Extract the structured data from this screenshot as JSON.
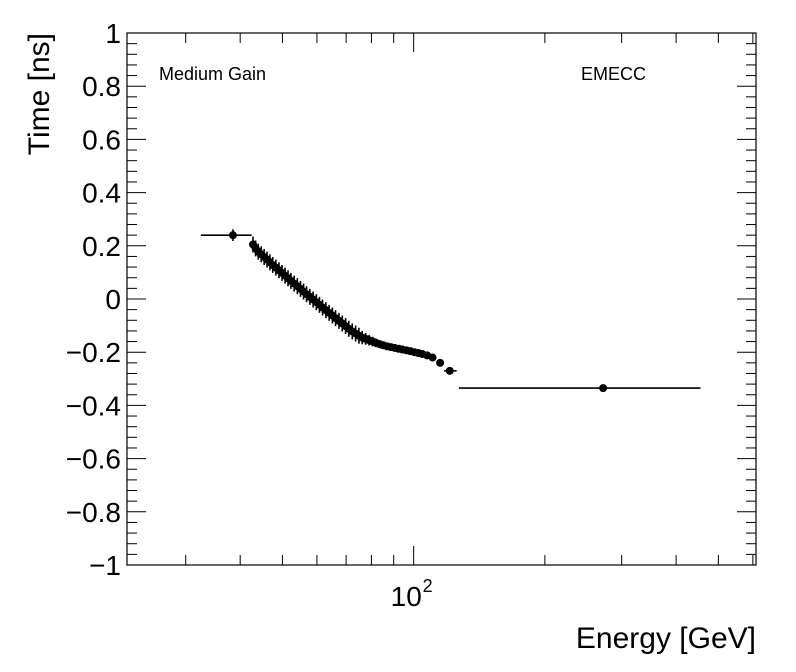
{
  "chart_data": {
    "type": "scatter",
    "title": "",
    "xlabel": "Energy [GeV]",
    "ylabel": "Time [ns]",
    "xscale": "log",
    "xlim": [
      22,
      610
    ],
    "ylim": [
      -1,
      1
    ],
    "grid": false,
    "legend": "none",
    "x_tick_labels": [
      {
        "value": 100,
        "base": "10",
        "exp": "2"
      }
    ],
    "y_tick_labels": [
      "−1",
      "−0.8",
      "−0.6",
      "−0.4",
      "−0.2",
      "0",
      "0.2",
      "0.4",
      "0.6",
      "0.8",
      "1"
    ],
    "y_tick_values": [
      -1,
      -0.8,
      -0.6,
      -0.4,
      -0.2,
      0,
      0.2,
      0.4,
      0.6,
      0.8,
      1
    ],
    "annotations": [
      "Medium Gain",
      "EMECC"
    ],
    "series": [
      {
        "name": "Medium Gain EMECC",
        "points": [
          {
            "x": 38.5,
            "y": 0.24,
            "xerr": [
              32.5,
              42.5
            ],
            "yerr": 0.022
          },
          {
            "x": 42.8,
            "y": 0.205,
            "yerr": 0.03
          },
          {
            "x": 43.4,
            "y": 0.19,
            "yerr": 0.03
          },
          {
            "x": 44.0,
            "y": 0.178,
            "yerr": 0.03
          },
          {
            "x": 44.7,
            "y": 0.168,
            "yerr": 0.03
          },
          {
            "x": 45.4,
            "y": 0.158,
            "yerr": 0.03
          },
          {
            "x": 46.1,
            "y": 0.148,
            "yerr": 0.03
          },
          {
            "x": 46.8,
            "y": 0.138,
            "yerr": 0.03
          },
          {
            "x": 47.5,
            "y": 0.128,
            "yerr": 0.03
          },
          {
            "x": 48.3,
            "y": 0.118,
            "yerr": 0.03
          },
          {
            "x": 49.1,
            "y": 0.108,
            "yerr": 0.03
          },
          {
            "x": 49.9,
            "y": 0.098,
            "yerr": 0.03
          },
          {
            "x": 50.7,
            "y": 0.088,
            "yerr": 0.03
          },
          {
            "x": 51.5,
            "y": 0.078,
            "yerr": 0.03
          },
          {
            "x": 52.3,
            "y": 0.068,
            "yerr": 0.03
          },
          {
            "x": 53.2,
            "y": 0.058,
            "yerr": 0.03
          },
          {
            "x": 54.1,
            "y": 0.048,
            "yerr": 0.03
          },
          {
            "x": 55.0,
            "y": 0.038,
            "yerr": 0.03
          },
          {
            "x": 55.9,
            "y": 0.028,
            "yerr": 0.03
          },
          {
            "x": 56.8,
            "y": 0.018,
            "yerr": 0.03
          },
          {
            "x": 57.8,
            "y": 0.008,
            "yerr": 0.03
          },
          {
            "x": 58.8,
            "y": -0.002,
            "yerr": 0.03
          },
          {
            "x": 59.8,
            "y": -0.012,
            "yerr": 0.03
          },
          {
            "x": 60.8,
            "y": -0.022,
            "yerr": 0.03
          },
          {
            "x": 61.8,
            "y": -0.032,
            "yerr": 0.03
          },
          {
            "x": 62.9,
            "y": -0.042,
            "yerr": 0.03
          },
          {
            "x": 64.0,
            "y": -0.052,
            "yerr": 0.03
          },
          {
            "x": 65.1,
            "y": -0.062,
            "yerr": 0.03
          },
          {
            "x": 66.2,
            "y": -0.072,
            "yerr": 0.03
          },
          {
            "x": 67.4,
            "y": -0.082,
            "yerr": 0.03
          },
          {
            "x": 68.6,
            "y": -0.092,
            "yerr": 0.03
          },
          {
            "x": 69.8,
            "y": -0.102,
            "yerr": 0.03
          },
          {
            "x": 71.0,
            "y": -0.112,
            "yerr": 0.03
          },
          {
            "x": 72.3,
            "y": -0.122,
            "yerr": 0.03
          },
          {
            "x": 73.6,
            "y": -0.13,
            "yerr": 0.03
          },
          {
            "x": 74.9,
            "y": -0.138,
            "yerr": 0.03
          },
          {
            "x": 76.2,
            "y": -0.145,
            "yerr": 0.025
          },
          {
            "x": 77.6,
            "y": -0.15,
            "yerr": 0.022
          },
          {
            "x": 79.0,
            "y": -0.155,
            "yerr": 0.02
          },
          {
            "x": 80.5,
            "y": -0.16,
            "yerr": 0.018
          },
          {
            "x": 82.0,
            "y": -0.165,
            "yerr": 0.016
          },
          {
            "x": 83.6,
            "y": -0.17,
            "yerr": 0.015
          },
          {
            "x": 85.2,
            "y": -0.174,
            "yerr": 0.014
          },
          {
            "x": 86.9,
            "y": -0.178,
            "yerr": 0.013
          },
          {
            "x": 88.7,
            "y": -0.181,
            "yerr": 0.012
          },
          {
            "x": 90.5,
            "y": -0.184,
            "yerr": 0.012
          },
          {
            "x": 92.4,
            "y": -0.187,
            "yerr": 0.011
          },
          {
            "x": 94.3,
            "y": -0.19,
            "yerr": 0.011
          },
          {
            "x": 96.3,
            "y": -0.193,
            "yerr": 0.01
          },
          {
            "x": 98.3,
            "y": -0.196,
            "yerr": 0.01
          },
          {
            "x": 100.4,
            "y": -0.2,
            "yerr": 0.01
          },
          {
            "x": 102.5,
            "y": -0.203,
            "yerr": 0.01
          },
          {
            "x": 104.7,
            "y": -0.207,
            "yerr": 0.01
          },
          {
            "x": 107.4,
            "y": -0.212,
            "yerr": 0.01
          },
          {
            "x": 110.5,
            "y": -0.22,
            "yerr": 0.01
          },
          {
            "x": 115.0,
            "y": -0.24,
            "yerr": 0.01
          },
          {
            "x": 121.0,
            "y": -0.27,
            "yerr": 0.01,
            "xerr": [
              117.5,
              125.5
            ]
          },
          {
            "x": 272.0,
            "y": -0.335,
            "yerr": 0.008,
            "xerr": [
              127.0,
              455.0
            ]
          }
        ]
      }
    ]
  }
}
